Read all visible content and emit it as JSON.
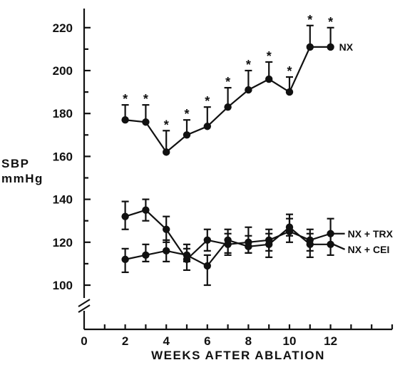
{
  "chart_data": {
    "type": "line",
    "title": "",
    "xlabel": "WEEKS AFTER ABLATION",
    "ylabel": [
      "SBP",
      "mmHg"
    ],
    "xlim": [
      0,
      14
    ],
    "ylim": [
      100,
      230
    ],
    "axis_break": "y-axis break below 100",
    "x_tick_labels": [
      "0",
      "2",
      "4",
      "6",
      "8",
      "10",
      "12"
    ],
    "y_tick_labels": [
      "100",
      "120",
      "140",
      "160",
      "180",
      "200",
      "220"
    ],
    "significance_marker": "*",
    "grid": false,
    "legend": "labels placed at the right end of each series line",
    "series": [
      {
        "name": "NX",
        "x": [
          2,
          3,
          4,
          5,
          6,
          7,
          8,
          9,
          10,
          11,
          12
        ],
        "values": [
          177,
          176,
          162,
          170,
          174,
          183,
          191,
          196,
          190,
          211,
          211
        ],
        "error_upper": [
          7,
          8,
          10,
          7,
          9,
          9,
          9,
          8,
          7,
          10,
          9
        ],
        "significant": [
          true,
          true,
          true,
          true,
          true,
          true,
          true,
          true,
          true,
          true,
          true
        ]
      },
      {
        "name": "NX + TRX",
        "x": [
          2,
          3,
          4,
          5,
          6,
          7,
          8,
          9,
          10,
          11,
          12
        ],
        "values": [
          132,
          135,
          126,
          112,
          121,
          119,
          120,
          121,
          125,
          121,
          124
        ],
        "error_upper": [
          7,
          5,
          6,
          5,
          5,
          5,
          7,
          5,
          6,
          5,
          7
        ],
        "error_lower": [
          6,
          5,
          6,
          5,
          5,
          5,
          5,
          5,
          5,
          5,
          5
        ]
      },
      {
        "name": "NX + CEI",
        "x": [
          2,
          3,
          4,
          5,
          6,
          7,
          8,
          9,
          10,
          11,
          12
        ],
        "values": [
          112,
          114,
          116,
          114,
          109,
          121,
          118,
          119,
          127,
          119,
          119
        ],
        "error_upper": [
          5,
          5,
          5,
          5,
          5,
          5,
          5,
          5,
          6,
          5,
          5
        ],
        "error_lower": [
          6,
          3,
          5,
          3,
          9,
          6,
          3,
          6,
          4,
          6,
          5
        ]
      }
    ]
  }
}
